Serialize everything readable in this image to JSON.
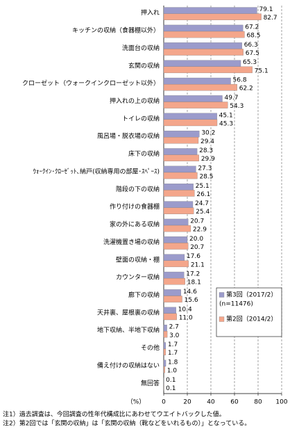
{
  "chart_data": {
    "type": "hbar",
    "categories": [
      "押入れ",
      "キッチンの収納（食器棚以外）",
      "洗面台の収納",
      "玄関の収納",
      "クローゼット（ウォークインクローゼット以外）",
      "押入れの上の収納",
      "トイレの収納",
      "風呂場・脱衣場の収納",
      "床下の収納",
      "ｳｫｰｸｲﾝ･ｸﾛｰｾﾞｯﾄ､納戸(収納専用の部屋･ｽﾍﾟｰｽ)",
      "階段の下の収納",
      "作り付けの食器棚",
      "家の外にある収納",
      "洗濯機置き場の収納",
      "壁面の収納・棚",
      "カウンター収納",
      "廊下の収納",
      "天井裏、屋根裏の収納",
      "地下収納、半地下収納",
      "その他",
      "備え付けの収納はない",
      "無回答"
    ],
    "series": [
      {
        "name": "第3回（2017/2）",
        "note": "(n=11476)",
        "color": "#9b9bcb",
        "values": [
          79.1,
          67.2,
          66.3,
          65.3,
          56.8,
          49.7,
          45.1,
          30.2,
          28.3,
          27.3,
          25.1,
          24.7,
          20.7,
          20.0,
          17.6,
          17.2,
          14.6,
          10.4,
          2.7,
          1.7,
          1.8,
          0.1
        ],
        "value_labels": [
          "79.1",
          "67.2",
          "66.3",
          "65.3",
          "56.8",
          "49.7",
          "45.1",
          "30.2",
          "28.3",
          "27.3",
          "25.1",
          "24.7",
          "20.7",
          "20.0",
          "17.6",
          "17.2",
          "14.6",
          "10.4",
          "2.7",
          "1.7",
          "1.8",
          "0.1"
        ]
      },
      {
        "name": "第2回（2014/2）",
        "color": "#f4a68b",
        "values": [
          82.7,
          68.5,
          67.5,
          75.1,
          62.2,
          54.3,
          45.3,
          29.4,
          29.9,
          28.5,
          26.1,
          25.4,
          22.9,
          20.7,
          21.1,
          18.1,
          15.6,
          11.0,
          3.0,
          1.7,
          1.0,
          0.1
        ],
        "value_labels": [
          "82.7",
          "68.5",
          "67.5",
          "75.1",
          "62.2",
          "54.3",
          "45.3",
          "29.4",
          "29.9",
          "28.5",
          "26.1",
          "25.4",
          "22.9",
          "20.7",
          "21.1",
          "18.1",
          "15.6",
          "11.0",
          "3.0",
          "1.7",
          "1.0",
          "0.1"
        ]
      }
    ],
    "x_label": "（%）",
    "xlim": [
      0,
      100
    ],
    "xticks": [
      0,
      20,
      40,
      60,
      80,
      100
    ],
    "grid": true,
    "notes": [
      "注1）過去調査は、今回調査の性年代構成比にあわせてウエイトバックした値。",
      "注2）第2回では「玄関の収納」は「玄関の収納（靴などをいれるもの）」となっている。"
    ]
  }
}
